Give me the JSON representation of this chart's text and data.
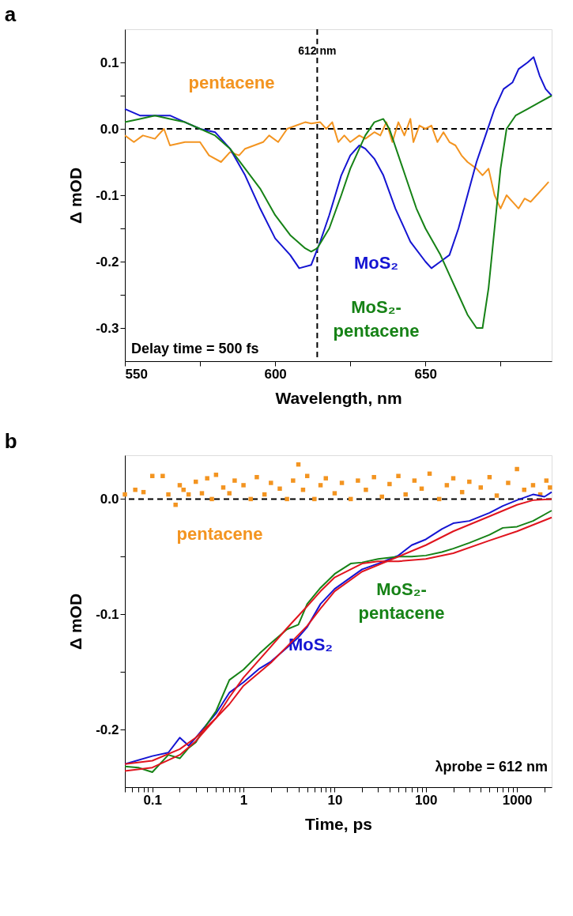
{
  "chart_data": [
    {
      "type": "line",
      "title": "a",
      "xlabel": "Wavelength, nm",
      "ylabel": "Δ mOD",
      "xlim": [
        550,
        692
      ],
      "ylim": [
        -0.35,
        0.15
      ],
      "xticks": [
        550,
        {
          "value": 575,
          "label": null
        },
        600,
        {
          "value": 625,
          "label": null
        },
        650,
        {
          "value": 675,
          "label": null
        }
      ],
      "yticks": [
        {
          "value": 0.1,
          "label": "0.1"
        },
        {
          "value": 0.05,
          "label": null
        },
        {
          "value": 0,
          "label": "0.0"
        },
        {
          "value": -0.05,
          "label": null
        },
        {
          "value": -0.1,
          "label": "-0.1"
        },
        {
          "value": -0.15,
          "label": null
        },
        {
          "value": -0.2,
          "label": "-0.2"
        },
        {
          "value": -0.25,
          "label": null
        },
        {
          "value": -0.3,
          "label": "-0.3"
        }
      ],
      "grid": false,
      "ref_lines": [
        {
          "axis": "x",
          "value": 614,
          "label": "612 nm",
          "line_style": "dashed",
          "color": "#000000"
        },
        {
          "axis": "y",
          "value": 0,
          "label": null,
          "line_style": "dashed",
          "color": "#000000"
        }
      ],
      "annotations": [
        "Delay time = 500 fs"
      ],
      "series": [
        {
          "name": "pentacene",
          "color": "#f39420",
          "x": [
            550,
            553,
            556,
            560,
            563,
            565,
            570,
            575,
            578,
            582,
            585,
            588,
            590,
            593,
            596,
            598,
            601,
            604,
            607,
            610,
            612,
            615,
            617,
            619,
            621,
            623,
            625,
            628,
            630,
            633,
            635,
            637,
            639,
            641,
            643,
            645,
            646,
            648,
            650,
            652,
            654,
            656,
            658,
            660,
            662,
            664,
            667,
            669,
            671,
            673,
            675,
            677,
            679,
            681,
            683,
            685,
            687,
            689,
            691
          ],
          "values": [
            -0.01,
            -0.02,
            -0.01,
            -0.015,
            0.0,
            -0.025,
            -0.02,
            -0.02,
            -0.04,
            -0.05,
            -0.035,
            -0.04,
            -0.03,
            -0.025,
            -0.02,
            -0.01,
            -0.02,
            0.0,
            0.005,
            0.01,
            0.008,
            0.01,
            0.0,
            0.01,
            -0.02,
            -0.01,
            -0.02,
            -0.01,
            -0.015,
            -0.005,
            -0.01,
            0.01,
            -0.02,
            0.01,
            -0.01,
            0.015,
            -0.02,
            0.005,
            0.0,
            0.005,
            -0.02,
            -0.005,
            -0.02,
            -0.025,
            -0.04,
            -0.05,
            -0.06,
            -0.07,
            -0.06,
            -0.1,
            -0.12,
            -0.1,
            -0.11,
            -0.12,
            -0.105,
            -0.11,
            -0.1,
            -0.09,
            -0.08
          ]
        },
        {
          "name": "MoS₂",
          "color": "#1414d2",
          "x": [
            550,
            555,
            560,
            565,
            570,
            575,
            580,
            585,
            590,
            595,
            600,
            605,
            608,
            612,
            615,
            618,
            620,
            622,
            625,
            628,
            630,
            633,
            636,
            640,
            645,
            650,
            652,
            655,
            658,
            661,
            664,
            667,
            670,
            673,
            676,
            679,
            681,
            684,
            686,
            688,
            690,
            692
          ],
          "values": [
            0.03,
            0.02,
            0.02,
            0.02,
            0.01,
            0.0,
            -0.005,
            -0.03,
            -0.07,
            -0.12,
            -0.165,
            -0.19,
            -0.21,
            -0.205,
            -0.17,
            -0.13,
            -0.1,
            -0.07,
            -0.04,
            -0.025,
            -0.03,
            -0.045,
            -0.07,
            -0.12,
            -0.17,
            -0.2,
            -0.21,
            -0.2,
            -0.19,
            -0.15,
            -0.1,
            -0.05,
            -0.01,
            0.03,
            0.06,
            0.07,
            0.09,
            0.1,
            0.108,
            0.08,
            0.06,
            0.05
          ]
        },
        {
          "name": "MoS₂-pentacene",
          "color": "#168216",
          "x": [
            550,
            555,
            560,
            565,
            570,
            575,
            580,
            585,
            590,
            595,
            600,
            605,
            610,
            612,
            614,
            618,
            622,
            625,
            628,
            630,
            633,
            636,
            638,
            641,
            644,
            647,
            650,
            655,
            658,
            661,
            664,
            667,
            669,
            671,
            673,
            675,
            677,
            680,
            684,
            688,
            692
          ],
          "values": [
            0.01,
            0.015,
            0.02,
            0.015,
            0.01,
            0.0,
            -0.01,
            -0.03,
            -0.06,
            -0.09,
            -0.13,
            -0.16,
            -0.18,
            -0.185,
            -0.18,
            -0.15,
            -0.1,
            -0.06,
            -0.03,
            -0.01,
            0.01,
            0.015,
            0.0,
            -0.04,
            -0.08,
            -0.12,
            -0.15,
            -0.19,
            -0.22,
            -0.25,
            -0.28,
            -0.3,
            -0.3,
            -0.24,
            -0.15,
            -0.06,
            0.0,
            0.02,
            0.03,
            0.04,
            0.05
          ]
        }
      ]
    },
    {
      "type": "line",
      "title": "b",
      "xlabel": "Time, ps",
      "ylabel": "Δ mOD",
      "log": "x",
      "xlim": [
        0.05,
        2400
      ],
      "ylim": [
        -0.25,
        0.038
      ],
      "xticks": [
        {
          "value": 0.05,
          "label": null
        },
        {
          "value": 0.06,
          "label": null
        },
        {
          "value": 0.07,
          "label": null
        },
        {
          "value": 0.08,
          "label": null
        },
        {
          "value": 0.09,
          "label": null
        },
        {
          "value": 0.1,
          "label": "0.1"
        },
        {
          "value": 0.2,
          "label": null
        },
        {
          "value": 0.3,
          "label": null
        },
        {
          "value": 0.4,
          "label": null
        },
        {
          "value": 0.5,
          "label": null
        },
        {
          "value": 0.6,
          "label": null
        },
        {
          "value": 0.7,
          "label": null
        },
        {
          "value": 0.8,
          "label": null
        },
        {
          "value": 0.9,
          "label": null
        },
        {
          "value": 1,
          "label": "1"
        },
        {
          "value": 2,
          "label": null
        },
        {
          "value": 3,
          "label": null
        },
        {
          "value": 4,
          "label": null
        },
        {
          "value": 5,
          "label": null
        },
        {
          "value": 6,
          "label": null
        },
        {
          "value": 7,
          "label": null
        },
        {
          "value": 8,
          "label": null
        },
        {
          "value": 9,
          "label": null
        },
        {
          "value": 10,
          "label": "10"
        },
        {
          "value": 20,
          "label": null
        },
        {
          "value": 30,
          "label": null
        },
        {
          "value": 40,
          "label": null
        },
        {
          "value": 50,
          "label": null
        },
        {
          "value": 60,
          "label": null
        },
        {
          "value": 70,
          "label": null
        },
        {
          "value": 80,
          "label": null
        },
        {
          "value": 90,
          "label": null
        },
        {
          "value": 100,
          "label": "100"
        },
        {
          "value": 200,
          "label": null
        },
        {
          "value": 300,
          "label": null
        },
        {
          "value": 400,
          "label": null
        },
        {
          "value": 500,
          "label": null
        },
        {
          "value": 600,
          "label": null
        },
        {
          "value": 700,
          "label": null
        },
        {
          "value": 800,
          "label": null
        },
        {
          "value": 900,
          "label": null
        },
        {
          "value": 1000,
          "label": "1000"
        },
        {
          "value": 2000,
          "label": null
        }
      ],
      "yticks": [
        {
          "value": 0,
          "label": "0.0"
        },
        {
          "value": -0.05,
          "label": null
        },
        {
          "value": -0.1,
          "label": "-0.1"
        },
        {
          "value": -0.15,
          "label": null
        },
        {
          "value": -0.2,
          "label": "-0.2"
        }
      ],
      "grid": false,
      "ref_lines": [
        {
          "axis": "y",
          "value": 0,
          "label": null,
          "line_style": "dashed",
          "color": "#000000"
        }
      ],
      "annotations": [
        "λprobe = 612 nm"
      ],
      "series": [
        {
          "name": "pentacene",
          "type": "scatter",
          "marker": "square",
          "color": "#f39420",
          "x": [
            0.05,
            0.065,
            0.08,
            0.1,
            0.13,
            0.15,
            0.18,
            0.2,
            0.22,
            0.25,
            0.3,
            0.35,
            0.4,
            0.45,
            0.5,
            0.6,
            0.7,
            0.8,
            1.0,
            1.2,
            1.4,
            1.7,
            2,
            2.5,
            3,
            3.5,
            4,
            4.5,
            5,
            6,
            7,
            8,
            10,
            12,
            15,
            18,
            22,
            27,
            33,
            40,
            50,
            60,
            75,
            90,
            110,
            140,
            170,
            200,
            250,
            300,
            400,
            500,
            600,
            800,
            1000,
            1200,
            1500,
            1800,
            2100,
            2300
          ],
          "values": [
            0.004,
            0.008,
            0.006,
            0.02,
            0.02,
            0.004,
            -0.005,
            0.012,
            0.008,
            0.004,
            0.015,
            0.005,
            0.018,
            0.0,
            0.021,
            0.01,
            0.005,
            0.016,
            0.012,
            0.0,
            0.019,
            0.004,
            0.014,
            0.009,
            0.0,
            0.016,
            0.03,
            0.008,
            0.02,
            0.0,
            0.012,
            0.018,
            0.005,
            0.014,
            0.0,
            0.016,
            0.008,
            0.019,
            0.002,
            0.013,
            0.02,
            0.004,
            0.016,
            0.009,
            0.022,
            0.0,
            0.012,
            0.018,
            0.006,
            0.015,
            0.01,
            0.019,
            0.003,
            0.014,
            0.026,
            0.008,
            0.012,
            0.004,
            0.016,
            0.01
          ]
        },
        {
          "name": "MoS₂",
          "type": "line",
          "color": "#1414d2",
          "x": [
            0.05,
            0.1,
            0.15,
            0.2,
            0.25,
            0.3,
            0.4,
            0.5,
            0.7,
            1.0,
            1.5,
            2,
            3,
            4,
            5,
            7,
            10,
            15,
            20,
            30,
            50,
            70,
            100,
            150,
            200,
            300,
            500,
            700,
            1000,
            1500,
            2000,
            2400
          ],
          "values": [
            -0.23,
            -0.223,
            -0.22,
            -0.207,
            -0.214,
            -0.207,
            -0.195,
            -0.186,
            -0.168,
            -0.159,
            -0.147,
            -0.141,
            -0.129,
            -0.12,
            -0.111,
            -0.091,
            -0.078,
            -0.068,
            -0.061,
            -0.056,
            -0.049,
            -0.04,
            -0.035,
            -0.026,
            -0.021,
            -0.019,
            -0.012,
            -0.006,
            -0.001,
            0.004,
            0.002,
            0.006
          ]
        },
        {
          "name": "MoS₂-pentacene",
          "type": "line",
          "color": "#168216",
          "x": [
            0.05,
            0.07,
            0.1,
            0.15,
            0.2,
            0.25,
            0.3,
            0.4,
            0.5,
            0.7,
            1,
            1.5,
            2,
            3,
            4,
            5,
            7,
            10,
            15,
            20,
            30,
            50,
            70,
            100,
            150,
            200,
            300,
            500,
            700,
            1000,
            1500,
            2400
          ],
          "values": [
            -0.232,
            -0.233,
            -0.237,
            -0.222,
            -0.225,
            -0.216,
            -0.211,
            -0.195,
            -0.184,
            -0.157,
            -0.148,
            -0.134,
            -0.125,
            -0.113,
            -0.109,
            -0.091,
            -0.077,
            -0.065,
            -0.056,
            -0.055,
            -0.052,
            -0.05,
            -0.05,
            -0.049,
            -0.046,
            -0.043,
            -0.038,
            -0.031,
            -0.025,
            -0.024,
            -0.019,
            -0.01
          ]
        },
        {
          "type": "line",
          "color": "#e0141e",
          "x": [
            0.05,
            0.1,
            0.2,
            0.3,
            0.5,
            0.7,
            1,
            2,
            3,
            5,
            7,
            10,
            20,
            50,
            100,
            200,
            500,
            1000,
            1500,
            2400
          ],
          "values": [
            -0.23,
            -0.227,
            -0.217,
            -0.207,
            -0.19,
            -0.178,
            -0.162,
            -0.142,
            -0.128,
            -0.11,
            -0.095,
            -0.08,
            -0.063,
            -0.05,
            -0.04,
            -0.028,
            -0.015,
            -0.005,
            -0.001,
            0.0
          ]
        },
        {
          "type": "line",
          "color": "#e0141e",
          "x": [
            0.05,
            0.1,
            0.2,
            0.3,
            0.5,
            0.7,
            1,
            2,
            3,
            5,
            7,
            10,
            20,
            30,
            50,
            100,
            200,
            500,
            1000,
            2400
          ],
          "values": [
            -0.236,
            -0.233,
            -0.222,
            -0.21,
            -0.19,
            -0.172,
            -0.155,
            -0.128,
            -0.112,
            -0.093,
            -0.08,
            -0.068,
            -0.056,
            -0.054,
            -0.054,
            -0.052,
            -0.047,
            -0.036,
            -0.028,
            -0.016
          ]
        }
      ]
    }
  ]
}
